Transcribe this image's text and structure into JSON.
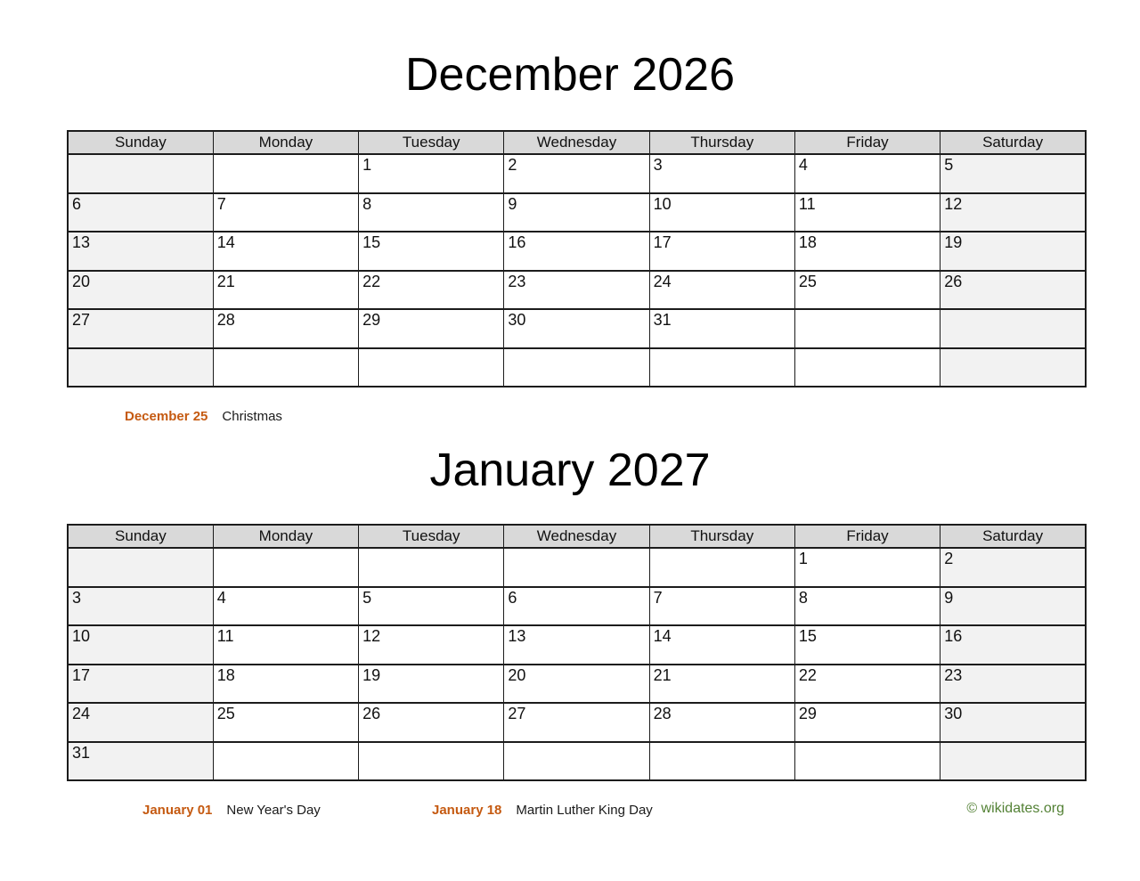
{
  "page": {
    "credit": "© wikidates.org",
    "colors": {
      "accent": "#C55A11",
      "credit_green": "#538135",
      "header_bg": "#D9D9D9",
      "weekend_bg": "#F2F2F2",
      "border": "#1C1C1C"
    }
  },
  "weekdays": [
    "Sunday",
    "Monday",
    "Tuesday",
    "Wednesday",
    "Thursday",
    "Friday",
    "Saturday"
  ],
  "months": [
    {
      "title": "December 2026",
      "weeks": [
        [
          "",
          "",
          "1",
          "2",
          "3",
          "4",
          "5"
        ],
        [
          "6",
          "7",
          "8",
          "9",
          "10",
          "11",
          "12"
        ],
        [
          "13",
          "14",
          "15",
          "16",
          "17",
          "18",
          "19"
        ],
        [
          "20",
          "21",
          "22",
          "23",
          "24",
          "25",
          "26"
        ],
        [
          "27",
          "28",
          "29",
          "30",
          "31",
          "",
          ""
        ],
        [
          "",
          "",
          "",
          "",
          "",
          "",
          ""
        ]
      ],
      "holidays": [
        {
          "date": "December 25",
          "name": "Christmas"
        }
      ]
    },
    {
      "title": "January 2027",
      "weeks": [
        [
          "",
          "",
          "",
          "",
          "",
          "1",
          "2"
        ],
        [
          "3",
          "4",
          "5",
          "6",
          "7",
          "8",
          "9"
        ],
        [
          "10",
          "11",
          "12",
          "13",
          "14",
          "15",
          "16"
        ],
        [
          "17",
          "18",
          "19",
          "20",
          "21",
          "22",
          "23"
        ],
        [
          "24",
          "25",
          "26",
          "27",
          "28",
          "29",
          "30"
        ],
        [
          "31",
          "",
          "",
          "",
          "",
          "",
          ""
        ]
      ],
      "holidays": [
        {
          "date": "January 01",
          "name": "New Year's Day"
        },
        {
          "date": "January 18",
          "name": "Martin Luther King Day"
        }
      ]
    }
  ]
}
